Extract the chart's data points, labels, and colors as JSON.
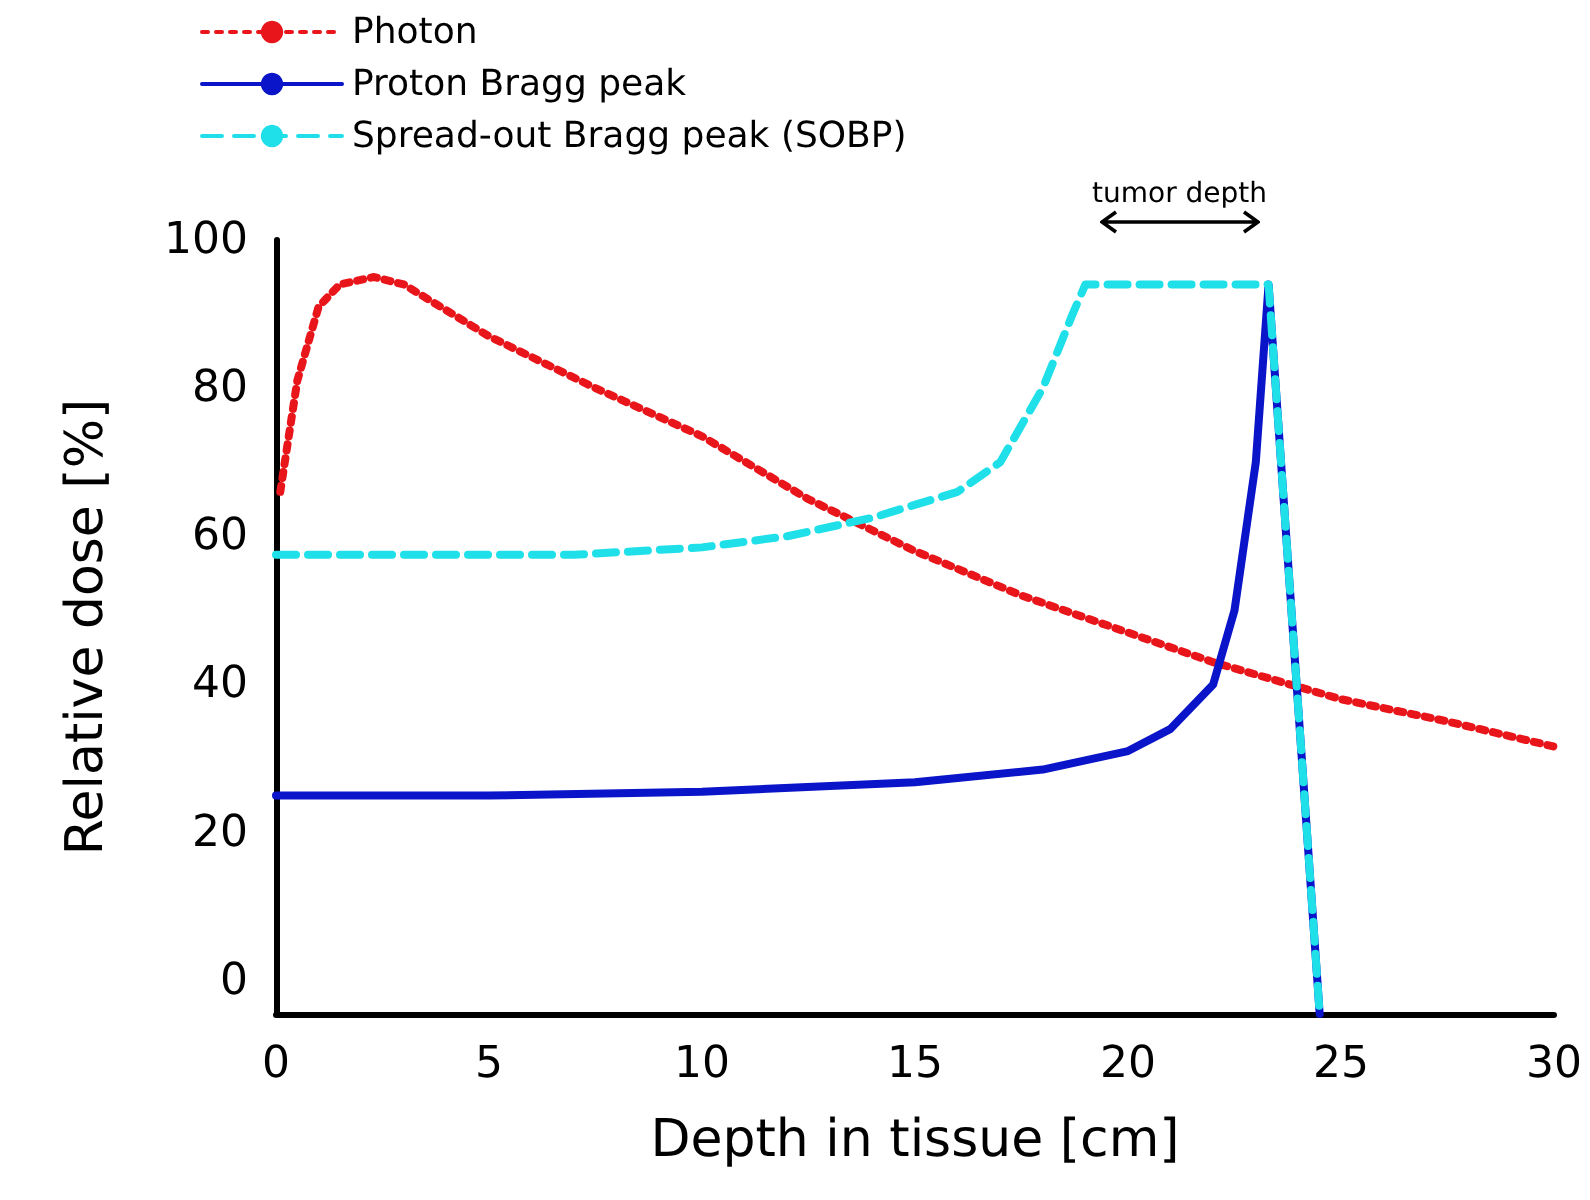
{
  "chart_data": {
    "type": "line",
    "xlabel": "Depth in tissue [cm]",
    "ylabel": "Relative dose [%]",
    "xlim": [
      0,
      30
    ],
    "xticks": [
      0,
      5,
      10,
      15,
      20,
      25,
      30
    ],
    "ylim": [
      -4.5,
      100
    ],
    "yticks": [
      0,
      20,
      40,
      60,
      80,
      100
    ],
    "grid": false,
    "legend": "top left",
    "marker": "none",
    "annotations": [
      "tumor depth"
    ],
    "series": [
      {
        "name": "Photon",
        "color": "#e8161b",
        "line_style": "dotted",
        "x": [
          0.1,
          0.5,
          1,
          1.5,
          2.3,
          3,
          5,
          7.5,
          10,
          12.5,
          15,
          17.5,
          20,
          22,
          25,
          27.5,
          30
        ],
        "values": [
          66,
          81,
          91,
          94,
          95,
          94,
          87,
          80,
          73.5,
          65,
          58,
          52,
          47,
          43,
          38,
          35,
          31.6
        ]
      },
      {
        "name": "Proton Bragg peak",
        "color": "#0a14c8",
        "line_style": "solid",
        "x": [
          0,
          5,
          10,
          15,
          18,
          20,
          21,
          22,
          22.5,
          23,
          23.3,
          24.5
        ],
        "values": [
          25,
          25,
          25.5,
          26.8,
          28.5,
          31,
          34,
          40,
          50,
          70,
          94,
          -4.5
        ]
      },
      {
        "name": "Spread-out Bragg peak (SOBP)",
        "color": "#1fe0e8",
        "line_style": "dashed",
        "x": [
          0,
          7,
          10,
          12,
          14,
          16,
          17,
          18,
          18.7,
          19,
          23.3,
          24.5
        ],
        "values": [
          57.5,
          57.5,
          58.5,
          60,
          62.5,
          66,
          70,
          80,
          90,
          94,
          94,
          -4.5
        ]
      }
    ]
  }
}
